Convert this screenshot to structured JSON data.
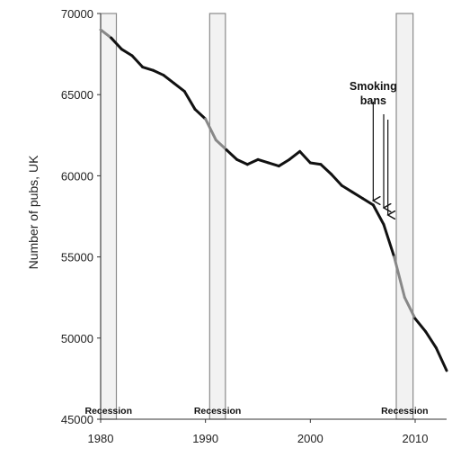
{
  "chart_data": {
    "type": "line",
    "title": "",
    "xlabel": "",
    "ylabel": "Number of pubs, UK",
    "xlim": [
      1980,
      2013
    ],
    "ylim": [
      45000,
      70000
    ],
    "x_ticks": [
      "1980",
      "1990",
      "2000",
      "2010"
    ],
    "y_ticks": [
      "70000",
      "65000",
      "60000",
      "55000",
      "50000",
      "45000"
    ],
    "grid": false,
    "legend": "none",
    "colors": {
      "line": "#111111",
      "line_in_recession": "#888888",
      "band_fill": "#f2f2f2",
      "band_edge": "#8a8a8a"
    },
    "series": [
      {
        "x": [
          1980,
          1981,
          1982,
          1983,
          1984,
          1985,
          1986,
          1987,
          1988,
          1989,
          1990,
          1991,
          1992,
          1993,
          1994,
          1995,
          1996,
          1997,
          1998,
          1999,
          2000,
          2001,
          2002,
          2003,
          2004,
          2005,
          2006,
          2007,
          2008,
          2009,
          2010,
          2011,
          2012,
          2013
        ],
        "values": [
          69000,
          68500,
          67800,
          67400,
          66700,
          66500,
          66200,
          65700,
          65200,
          64100,
          63500,
          62200,
          61600,
          61000,
          60700,
          61000,
          60800,
          60600,
          61000,
          61500,
          60800,
          60700,
          60100,
          59400,
          59000,
          58600,
          58200,
          57000,
          55000,
          52500,
          51200,
          50400,
          49400,
          48000
        ]
      }
    ],
    "recessions": [
      {
        "label": "Recession",
        "start": 1980,
        "end": 1981.5
      },
      {
        "label": "Recession",
        "start": 1990.4,
        "end": 1991.9
      },
      {
        "label": "Recession",
        "start": 2008.2,
        "end": 2009.8
      }
    ],
    "annotations": [
      {
        "text_lines": [
          "Smoking",
          "bans"
        ],
        "arrows_x": [
          2006,
          2007,
          2007.4
        ]
      }
    ]
  }
}
